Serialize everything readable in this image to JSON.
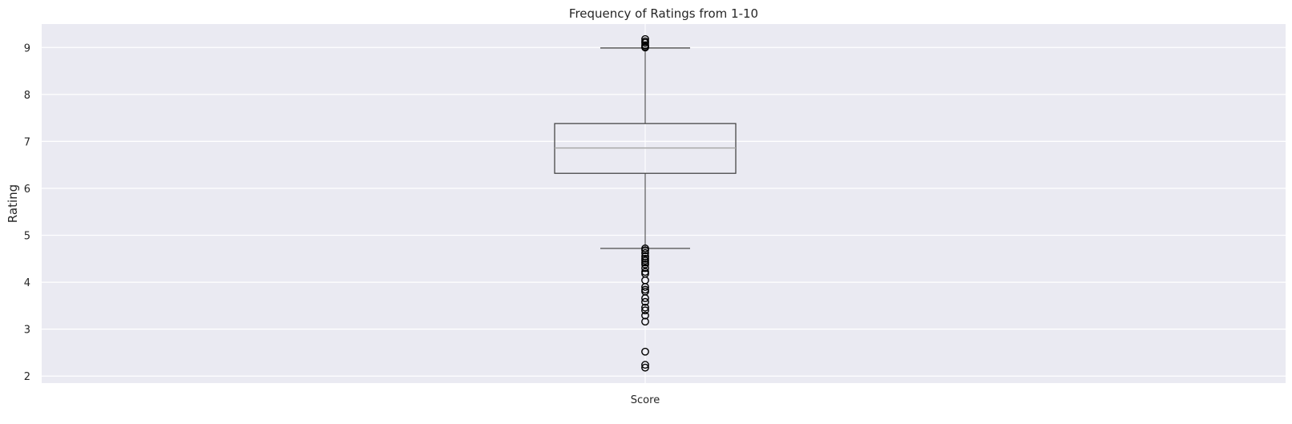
{
  "chart_data": {
    "type": "box",
    "title": "Frequency of Ratings from 1-10",
    "xlabel": "",
    "ylabel": "Rating",
    "categories": [
      "Score"
    ],
    "ylim": [
      1.85,
      9.5
    ],
    "yticks": [
      2,
      3,
      4,
      5,
      6,
      7,
      8,
      9
    ],
    "grid": true,
    "colors": {
      "background": "#eaeaf2",
      "grid": "#ffffff",
      "box": "#3a3a3a",
      "median": "#a8a8a8",
      "outlier": "#000000"
    },
    "box": {
      "whisker_low": 4.72,
      "q1": 6.32,
      "median": 6.86,
      "q3": 7.38,
      "whisker_high": 8.99
    },
    "outliers_high": [
      9.0,
      9.02,
      9.05,
      9.1,
      9.13,
      9.18
    ],
    "outliers_low": [
      4.72,
      4.68,
      4.62,
      4.55,
      4.5,
      4.46,
      4.42,
      4.38,
      4.3,
      4.22,
      4.18,
      4.04,
      3.9,
      3.84,
      3.8,
      3.66,
      3.58,
      3.46,
      3.4,
      3.29,
      3.16,
      2.52,
      2.24,
      2.18
    ]
  }
}
